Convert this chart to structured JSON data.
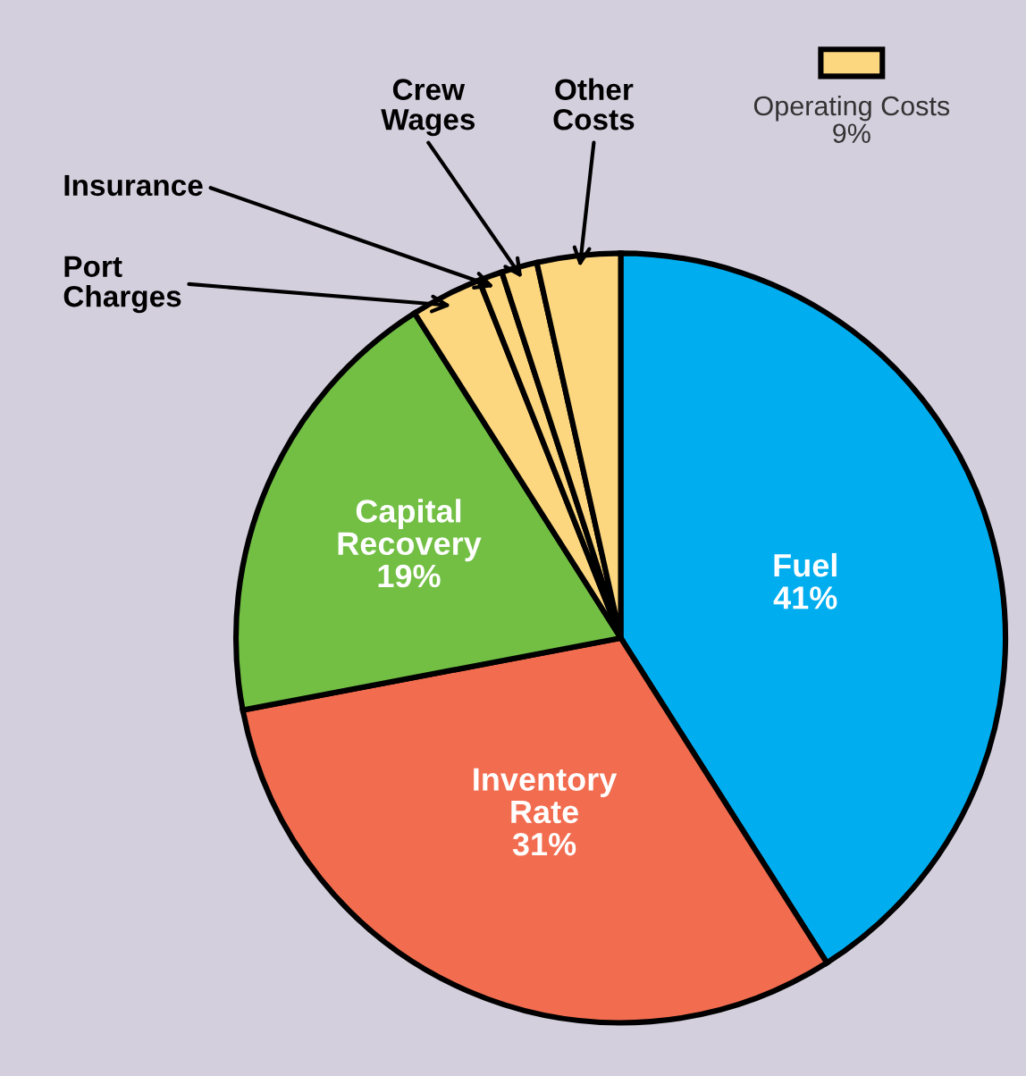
{
  "chart_data": {
    "type": "pie",
    "categories": [
      "Fuel",
      "Inventory Rate",
      "Capital Recovery",
      "Port Charges",
      "Insurance",
      "Crew Wages",
      "Other Costs"
    ],
    "values": [
      41,
      31,
      19,
      3,
      1,
      1.5,
      3.5
    ],
    "value_labels": [
      "41%",
      "31%",
      "19%",
      null,
      null,
      null,
      null
    ],
    "colors": [
      "#00aeef",
      "#f26d50",
      "#72bf44",
      "#fdd77f",
      "#fdd77f",
      "#fdd77f",
      "#fdd77f"
    ],
    "annotations": [
      "Operating Costs\n9%"
    ]
  }
}
